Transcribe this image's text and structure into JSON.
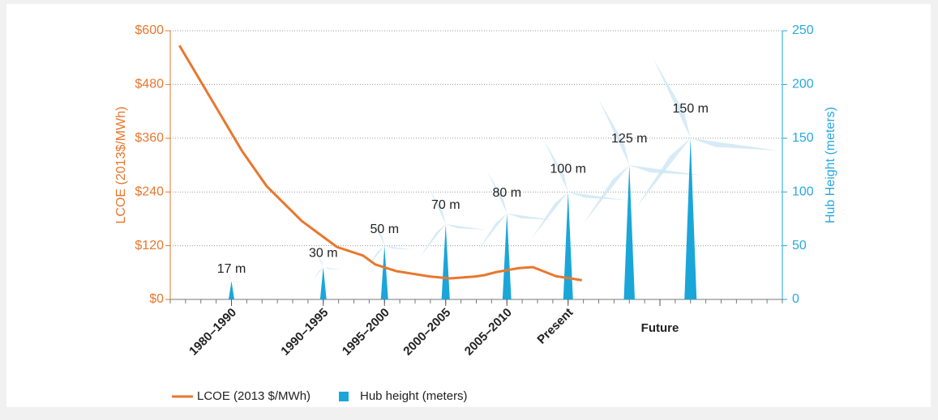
{
  "chart_data": {
    "type": "line_bar",
    "y_label": "LCOE (2013$/MWh)",
    "y2_label": "Hub Height (meters)",
    "xlim": [
      0,
      40
    ],
    "xticks": [
      {
        "value": 4,
        "label": "1980–1990"
      },
      {
        "value": 10,
        "label": "1990–1995"
      },
      {
        "value": 14,
        "label": "1995–2000"
      },
      {
        "value": 18,
        "label": "2000–2005"
      },
      {
        "value": 22,
        "label": "2005–2010"
      },
      {
        "value": 26,
        "label": "Present"
      },
      {
        "value": 32,
        "label": "Future"
      }
    ],
    "ylim": [
      0,
      600
    ],
    "yticks": [
      {
        "value": 0,
        "label": "$0"
      },
      {
        "value": 120,
        "label": "$120"
      },
      {
        "value": 240,
        "label": "$240"
      },
      {
        "value": 360,
        "label": "$360"
      },
      {
        "value": 480,
        "label": "$480"
      },
      {
        "value": 600,
        "label": "$600"
      }
    ],
    "y2lim": [
      0,
      250
    ],
    "y2ticks": [
      0,
      50,
      100,
      150,
      200,
      250
    ],
    "grid": true,
    "series": [
      {
        "name": "LCOE (2013 $/MWh)",
        "type": "line",
        "color": "#e8772e",
        "x": [
          0.6,
          4.7,
          6.3,
          8.6,
          10.9,
          12.6,
          13.4,
          14.8,
          17.0,
          18.3,
          19.9,
          20.5,
          21.3,
          22.8,
          23.7,
          25.2,
          26.9
        ],
        "values": [
          567,
          331,
          253,
          175,
          117,
          98,
          78,
          63,
          51,
          47,
          51,
          54,
          61,
          70,
          72,
          52,
          43
        ]
      },
      {
        "name": "Hub height (meters)",
        "type": "bar",
        "axis": "y2",
        "color": "#1ba6d9",
        "x": [
          4,
          10,
          14,
          18,
          22,
          26,
          30,
          34
        ],
        "values": [
          17,
          30,
          50,
          70,
          80,
          100,
          125,
          150
        ],
        "value_labels": [
          "17 m",
          "30 m",
          "50 m",
          "70 m",
          "80 m",
          "100 m",
          "125 m",
          "150 m"
        ]
      }
    ]
  }
}
